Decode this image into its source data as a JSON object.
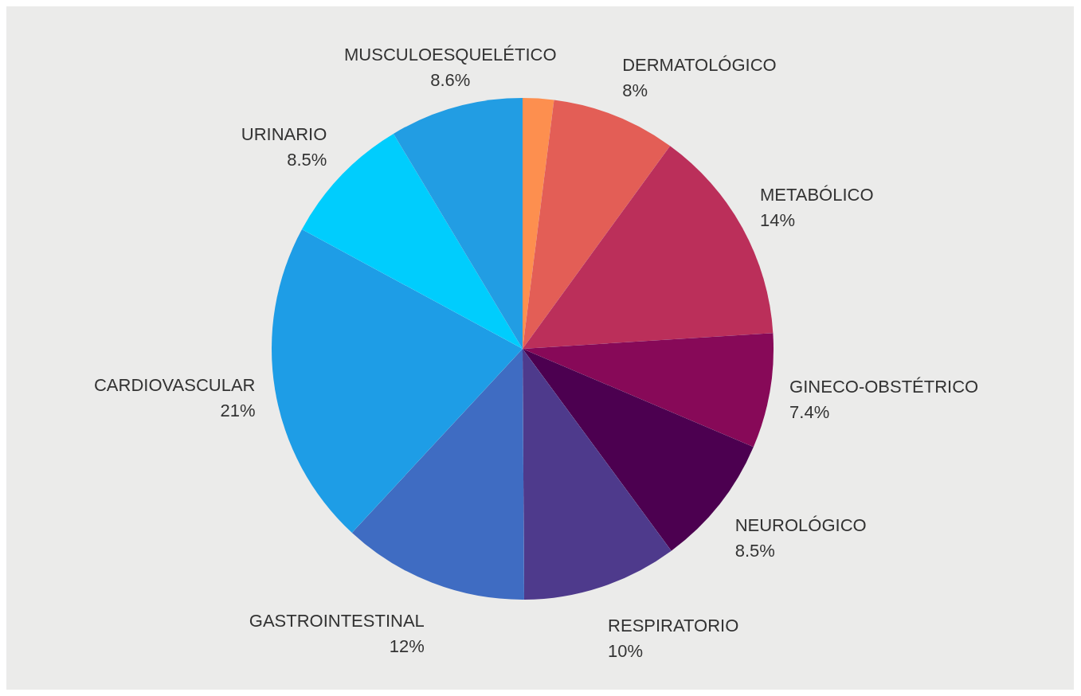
{
  "chart_data": {
    "type": "pie",
    "categories": [
      null,
      "DERMATOLÓGICO",
      "METABÓLICO",
      "GINECO-OBSTÉTRICO",
      "NEUROLÓGICO",
      "RESPIRATORIO",
      "GASTROINTESTINAL",
      "CARDIOVASCULAR",
      "URINARIO",
      "MUSCULOESQUELÉTICO"
    ],
    "values": [
      2,
      8,
      14,
      7.4,
      8.5,
      10,
      12,
      21,
      8.5,
      8.6
    ],
    "value_labels": [
      null,
      "8%",
      "14%",
      "7.4%",
      "8.5%",
      "10%",
      "12%",
      "21%",
      "8.5%",
      "8.6%"
    ],
    "colors": [
      "#fd8f4f",
      "#e35e56",
      "#bb2f5a",
      "#870958",
      "#4c0050",
      "#4e3a8c",
      "#3f6cc2",
      "#1e9de6",
      "#00cdfd",
      "#229de3"
    ]
  }
}
